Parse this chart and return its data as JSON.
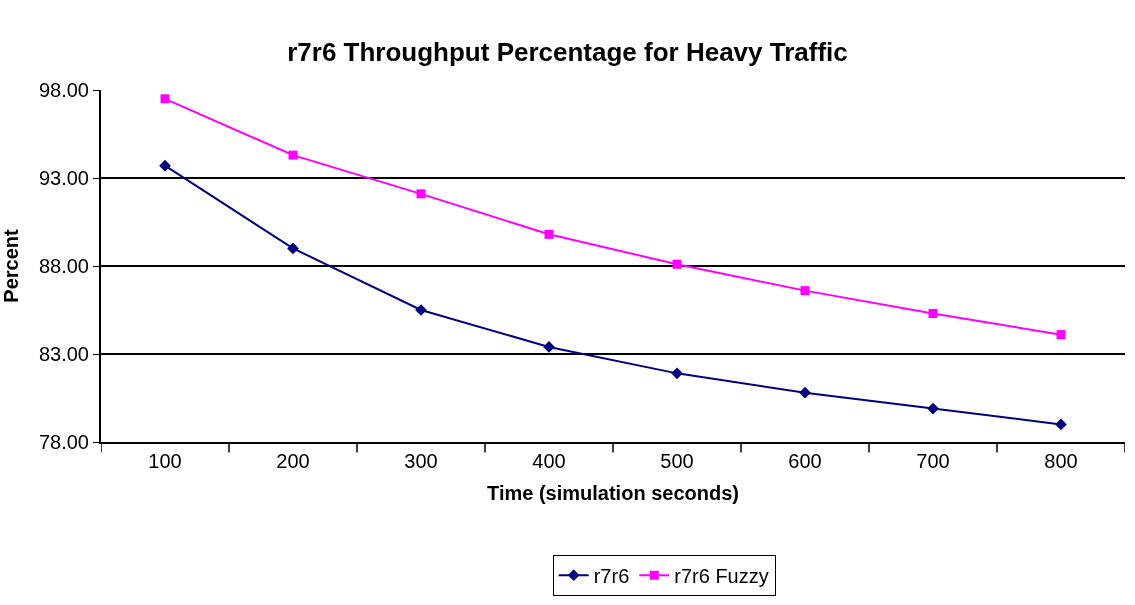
{
  "chart_data": {
    "type": "line",
    "title": "r7r6 Throughput Percentage for Heavy Traffic",
    "xlabel": "Time (simulation seconds)",
    "ylabel": "Percent",
    "categories": [
      "100",
      "200",
      "300",
      "400",
      "500",
      "600",
      "700",
      "800"
    ],
    "series": [
      {
        "name": "r7r6",
        "color": "#000080",
        "marker": "diamond",
        "values": [
          93.7,
          89.0,
          85.5,
          83.4,
          81.9,
          80.8,
          79.9,
          79.0
        ]
      },
      {
        "name": "r7r6 Fuzzy",
        "color": "#ff00ff",
        "marker": "square",
        "values": [
          97.5,
          94.3,
          92.1,
          89.8,
          88.1,
          86.6,
          85.3,
          84.1
        ]
      }
    ],
    "ylim": [
      78,
      98
    ],
    "yticks": [
      {
        "value": 78,
        "label": "78.00"
      },
      {
        "value": 83,
        "label": "83.00"
      },
      {
        "value": 88,
        "label": "88.00"
      },
      {
        "value": 93,
        "label": "93.00"
      },
      {
        "value": 98,
        "label": "98.00"
      }
    ],
    "grid": "y",
    "legend": "bottom",
    "line_style": "solid"
  }
}
